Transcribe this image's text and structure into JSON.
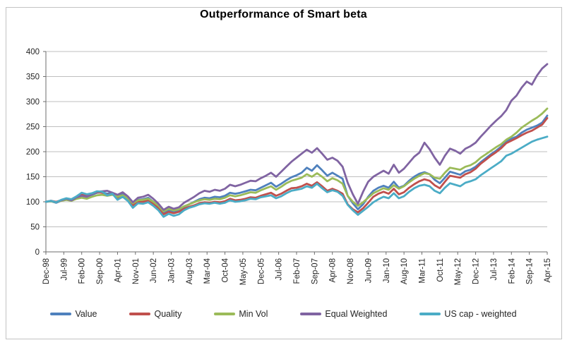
{
  "chart_data": {
    "type": "line",
    "title": "Outperformance of Smart beta",
    "x_unit": "month",
    "total_months": 196,
    "x_tick_interval_months": 7,
    "data_point_interval_months": 2,
    "x_tick_labels": [
      "Dec-98",
      "Jul-99",
      "Feb-00",
      "Sep-00",
      "Apr-01",
      "Nov-01",
      "Jun-02",
      "Jan-03",
      "Aug-03",
      "Mar-04",
      "Oct-04",
      "May-05",
      "Dec-05",
      "Jul-06",
      "Feb-07",
      "Sep-07",
      "Apr-08",
      "Nov-08",
      "Jun-09",
      "Jan-10",
      "Aug-10",
      "Mar-11",
      "Oct-11",
      "May-12",
      "Dec-12",
      "Jul-13",
      "Feb-14",
      "Sep-14",
      "Apr-15"
    ],
    "ylim": [
      0,
      400
    ],
    "y_tick_step": 50,
    "y_tick_labels": [
      "0",
      "50",
      "100",
      "150",
      "200",
      "250",
      "300",
      "350",
      "400"
    ],
    "grid": "horizontal",
    "legend_position": "bottom",
    "gridline_color": "#bfbfbf",
    "axis_color": "#6e6e6e",
    "tick_label_color": "#262626",
    "series": [
      {
        "name": "Value",
        "color": "#4F81BD",
        "values": [
          100,
          101,
          98,
          102,
          105,
          102,
          108,
          112,
          110,
          114,
          118,
          119,
          116,
          118,
          112,
          116,
          108,
          96,
          104,
          105,
          108,
          100,
          90,
          77,
          83,
          79,
          82,
          90,
          95,
          100,
          105,
          108,
          107,
          110,
          109,
          112,
          118,
          116,
          118,
          121,
          124,
          123,
          128,
          133,
          138,
          130,
          136,
          143,
          149,
          153,
          158,
          168,
          162,
          173,
          163,
          152,
          158,
          152,
          146,
          112,
          97,
          85,
          95,
          110,
          122,
          128,
          132,
          128,
          140,
          128,
          132,
          142,
          150,
          156,
          159,
          155,
          144,
          137,
          148,
          160,
          157,
          154,
          161,
          164,
          170,
          179,
          187,
          195,
          202,
          210,
          220,
          226,
          230,
          238,
          244,
          248,
          252,
          258,
          272
        ]
      },
      {
        "name": "Quality",
        "color": "#C0504D",
        "values": [
          100,
          102,
          100,
          103,
          106,
          104,
          110,
          114,
          112,
          116,
          119,
          118,
          114,
          116,
          108,
          112,
          104,
          93,
          100,
          100,
          103,
          96,
          87,
          75,
          80,
          77,
          80,
          86,
          90,
          93,
          97,
          99,
          98,
          100,
          99,
          101,
          106,
          103,
          104,
          106,
          109,
          108,
          112,
          115,
          118,
          112,
          116,
          122,
          127,
          128,
          131,
          136,
          132,
          139,
          131,
          122,
          126,
          122,
          116,
          95,
          85,
          79,
          87,
          98,
          110,
          116,
          120,
          116,
          126,
          115,
          119,
          128,
          135,
          141,
          145,
          142,
          133,
          127,
          140,
          152,
          150,
          148,
          155,
          159,
          166,
          176,
          184,
          192,
          199,
          207,
          217,
          222,
          227,
          233,
          238,
          242,
          248,
          254,
          267
        ]
      },
      {
        "name": "Min Vol",
        "color": "#9BBB59",
        "values": [
          100,
          101,
          99,
          102,
          104,
          102,
          106,
          108,
          106,
          110,
          113,
          114,
          112,
          114,
          110,
          113,
          107,
          97,
          103,
          104,
          106,
          100,
          92,
          81,
          86,
          83,
          85,
          91,
          95,
          99,
          103,
          105,
          104,
          106,
          105,
          108,
          113,
          111,
          113,
          116,
          119,
          118,
          123,
          127,
          131,
          124,
          130,
          137,
          142,
          145,
          148,
          155,
          150,
          157,
          150,
          141,
          147,
          143,
          136,
          112,
          100,
          92,
          99,
          108,
          117,
          122,
          127,
          124,
          133,
          126,
          131,
          139,
          146,
          152,
          157,
          155,
          148,
          146,
          158,
          168,
          166,
          164,
          170,
          173,
          179,
          188,
          195,
          202,
          209,
          215,
          224,
          230,
          238,
          248,
          255,
          262,
          268,
          276,
          286
        ]
      },
      {
        "name": "Equal Weighted",
        "color": "#8064A2",
        "values": [
          100,
          102,
          99,
          103,
          106,
          103,
          109,
          112,
          110,
          115,
          120,
          121,
          122,
          118,
          114,
          119,
          111,
          99,
          108,
          110,
          114,
          106,
          96,
          84,
          90,
          86,
          89,
          98,
          104,
          110,
          117,
          122,
          120,
          124,
          122,
          126,
          134,
          131,
          134,
          138,
          142,
          141,
          147,
          152,
          158,
          150,
          160,
          170,
          180,
          188,
          196,
          204,
          198,
          207,
          196,
          184,
          188,
          182,
          170,
          138,
          115,
          96,
          120,
          140,
          150,
          156,
          162,
          156,
          174,
          158,
          166,
          178,
          190,
          198,
          218,
          205,
          188,
          174,
          192,
          206,
          202,
          196,
          206,
          211,
          218,
          230,
          241,
          252,
          262,
          271,
          283,
          302,
          312,
          328,
          340,
          334,
          352,
          366,
          375
        ]
      },
      {
        "name": "US cap - weighted",
        "color": "#4BACC6",
        "values": [
          100,
          102,
          99,
          104,
          107,
          105,
          111,
          118,
          115,
          117,
          121,
          120,
          113,
          116,
          104,
          110,
          102,
          88,
          97,
          96,
          99,
          92,
          83,
          70,
          76,
          72,
          75,
          83,
          88,
          91,
          95,
          97,
          96,
          98,
          96,
          98,
          103,
          100,
          101,
          103,
          106,
          105,
          109,
          111,
          113,
          107,
          111,
          117,
          122,
          124,
          126,
          131,
          128,
          136,
          127,
          119,
          123,
          120,
          112,
          94,
          83,
          74,
          82,
          90,
          99,
          105,
          110,
          107,
          117,
          107,
          111,
          120,
          127,
          132,
          134,
          131,
          122,
          117,
          128,
          137,
          134,
          131,
          138,
          141,
          145,
          153,
          160,
          167,
          174,
          181,
          192,
          196,
          202,
          208,
          214,
          220,
          224,
          227,
          230
        ]
      }
    ]
  }
}
